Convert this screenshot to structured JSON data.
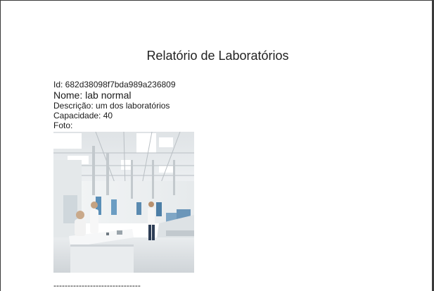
{
  "report": {
    "title": "Relatório de Laboratórios"
  },
  "lab": {
    "id_line": "Id: 682d38098f7bda989a236809",
    "nome_line": "Nome: lab normal",
    "descricao_line": "Descrição: um dos laboratórios",
    "capacidade_line": "Capacidade: 40",
    "foto_line": "Foto:",
    "photo_alt": "lab normal"
  },
  "separator": "-------------------------------"
}
